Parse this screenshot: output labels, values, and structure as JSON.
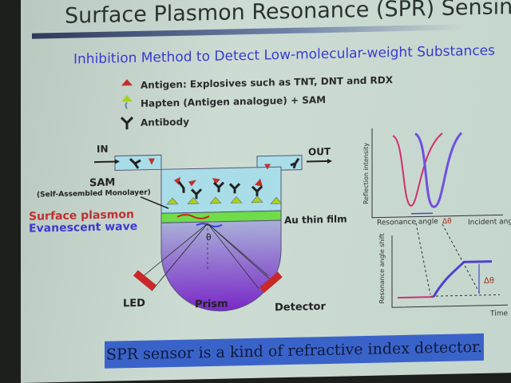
{
  "title": "Surface Plasmon Resonance (SPR) Sensing",
  "subtitle": "Inhibition Method to Detect Low-molecular-weight Substances",
  "legend": [
    {
      "icon": "red-triangle",
      "label": "Antigen: Explosives such as TNT, DNT and RDX"
    },
    {
      "icon": "green-triangle-on-stalk",
      "label": "Hapten (Antigen analogue) + SAM"
    },
    {
      "icon": "antibody-y",
      "label": "Antibody"
    }
  ],
  "diagram": {
    "in": "IN",
    "out": "OUT",
    "sam": "SAM",
    "sam_full": "(Self-Assembled Monolayer)",
    "surface_plasmon": "Surface plasmon",
    "evanescent": "Evanescent wave",
    "au": "Au thin film",
    "theta": "θ",
    "led": "LED",
    "prism": "Prism",
    "detector": "Detector"
  },
  "graph_top": {
    "ylabel": "Reflection intensity",
    "x_res": "Resonance angle",
    "delta": "Δθ",
    "xlabel": "Incident angle  θ"
  },
  "graph_bottom": {
    "ylabel": "Resonance angle shift",
    "delta": "Δθ",
    "xlabel": "Time"
  },
  "footer": "SPR sensor is a kind of refractive index detector.",
  "colors": {
    "title_blue": "#3a3ad0",
    "footer_bg": "#3a63c9",
    "antigen": "#c0302a",
    "hapten": "#a8d020",
    "gold_film": "#6fdc4a"
  }
}
